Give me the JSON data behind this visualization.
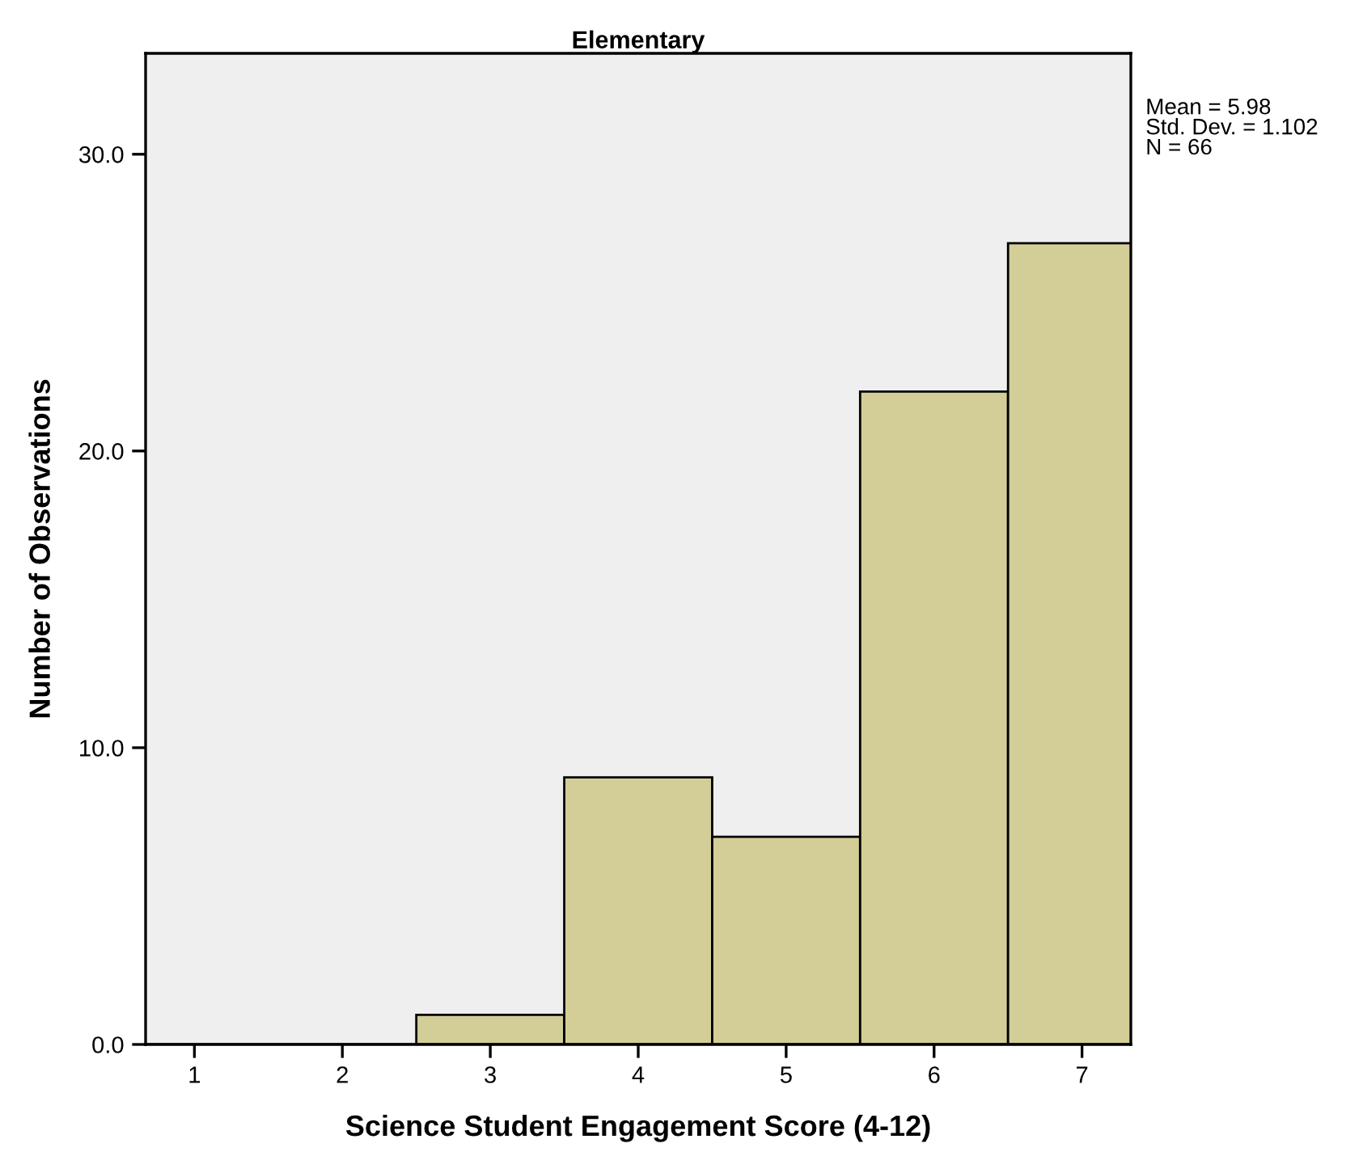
{
  "chart_data": {
    "type": "histogram",
    "title": "Elementary",
    "xlabel": "Science Student Engagement Score (4-12)",
    "ylabel": "Number of Observations",
    "bins": [
      0.5,
      1.5,
      2.5,
      3.5,
      4.5,
      5.5,
      6.5,
      7.5
    ],
    "values": [
      0,
      0,
      1,
      9,
      7,
      22,
      27
    ],
    "color": "#d3ce97",
    "xlim": [
      0.67,
      7.33
    ],
    "xticks": [
      1,
      2,
      3,
      4,
      5,
      6,
      7
    ],
    "ylim": [
      0,
      33.4
    ],
    "yticks": [
      {
        "value": 0,
        "label": "0.0"
      },
      {
        "value": 10,
        "label": "10.0"
      },
      {
        "value": 20,
        "label": "20.0"
      },
      {
        "value": 30,
        "label": "30.0"
      }
    ],
    "annotations": [
      "Mean = 5.98\nStd. Dev. = 1.102\nN = 66"
    ],
    "grid": false,
    "legend": false
  }
}
